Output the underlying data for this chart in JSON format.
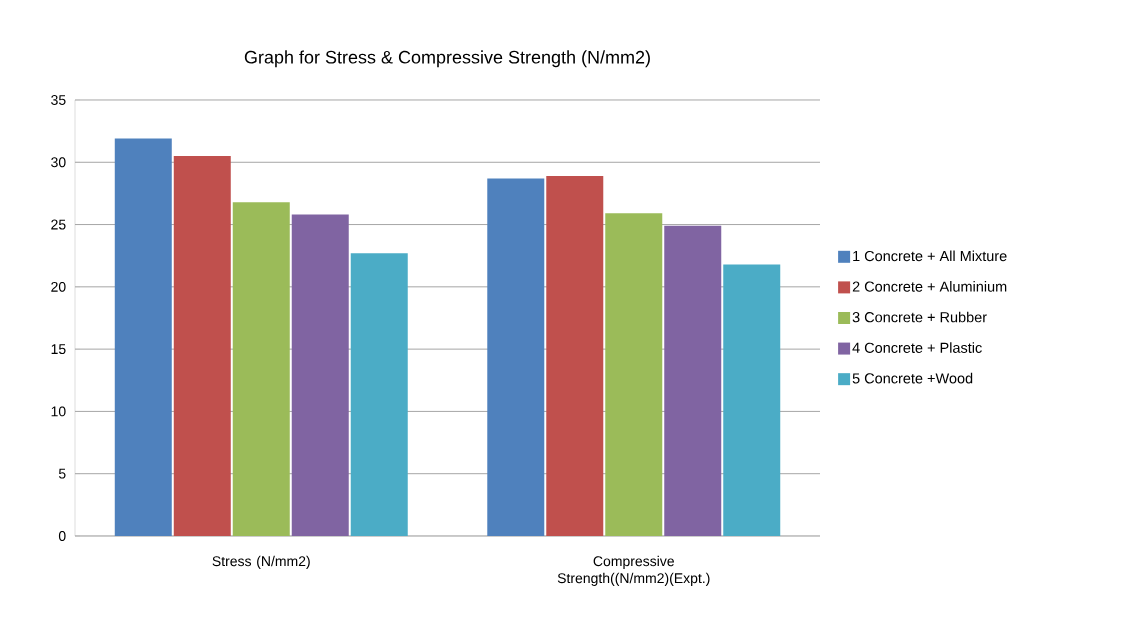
{
  "chart_data": {
    "type": "bar",
    "title": "Graph for Stress & Compressive Strength (N/mm2)",
    "categories": [
      "Stress  (N/mm2)",
      "Compressive Strength((N/mm2)(Expt.)"
    ],
    "series": [
      {
        "name": "1 Concrete + All Mixture",
        "color": "#4f81bd",
        "values": [
          31.9,
          28.7
        ]
      },
      {
        "name": "2 Concrete + Aluminium",
        "color": "#c0504d",
        "values": [
          30.5,
          28.9
        ]
      },
      {
        "name": "3 Concrete + Rubber",
        "color": "#9bbb59",
        "values": [
          26.8,
          25.9
        ]
      },
      {
        "name": "4 Concrete + Plastic",
        "color": "#8064a2",
        "values": [
          25.8,
          24.9
        ]
      },
      {
        "name": "5 Concrete +Wood",
        "color": "#4bacc6",
        "values": [
          22.7,
          21.8
        ]
      }
    ],
    "ylim": [
      0,
      35
    ],
    "yticks": [
      0,
      5,
      10,
      15,
      20,
      25,
      30,
      35
    ],
    "grid": "y",
    "legend": "right"
  }
}
